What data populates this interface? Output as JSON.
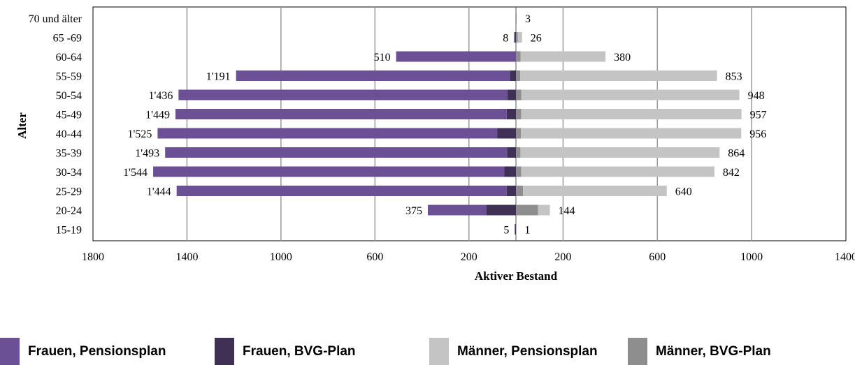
{
  "chart_data": {
    "type": "bar",
    "orientation": "horizontal-population-pyramid",
    "xlabel": "Aktiver Bestand",
    "ylabel": "Alter",
    "xticks": [
      "1800",
      "1400",
      "1000",
      "600",
      "200",
      "200",
      "600",
      "1000",
      "1400"
    ],
    "xlim_left": [
      0,
      1800
    ],
    "xlim_right": [
      0,
      1400
    ],
    "grid": "vertical",
    "legend_position": "bottom",
    "categories": [
      "70 und älter",
      "65 -69",
      "60-64",
      "55-59",
      "50-54",
      "45-49",
      "40-44",
      "35-39",
      "30-34",
      "25-29",
      "20-24",
      "15-19"
    ],
    "series": [
      {
        "name": "Frauen, Pensionsplan",
        "side": "left",
        "color": "#6b5096",
        "values": [
          0,
          3,
          510,
          1165,
          1400,
          1410,
          1445,
          1455,
          1495,
          1405,
          250,
          0
        ]
      },
      {
        "name": "Frauen, BVG-Plan",
        "side": "left",
        "color": "#3f3055",
        "values": [
          0,
          5,
          0,
          26,
          36,
          39,
          80,
          38,
          49,
          39,
          125,
          5
        ]
      },
      {
        "name": "Männer, Pensionsplan",
        "side": "right",
        "color": "#c4c4c4",
        "values": [
          0,
          18,
          360,
          835,
          925,
          935,
          935,
          845,
          820,
          610,
          50,
          0
        ]
      },
      {
        "name": "Männer, BVG-Plan",
        "side": "right",
        "color": "#8e8e8e",
        "values": [
          3,
          8,
          20,
          18,
          23,
          22,
          21,
          19,
          22,
          30,
          94,
          1
        ]
      }
    ],
    "labels_left": [
      "",
      "8",
      "510",
      "1'191",
      "1'436",
      "1'449",
      "1'525",
      "1'493",
      "1'544",
      "1'444",
      "375",
      "5"
    ],
    "labels_right": [
      "3",
      "26",
      "380",
      "853",
      "948",
      "957",
      "956",
      "864",
      "842",
      "640",
      "144",
      "1"
    ]
  },
  "legend": {
    "items": [
      {
        "label": "Frauen, Pensionsplan",
        "color": "#6b5096"
      },
      {
        "label": "Frauen, BVG-Plan",
        "color": "#3f3055"
      },
      {
        "label": "Männer, Pensionsplan",
        "color": "#c4c4c4"
      },
      {
        "label": "Männer,  BVG-Plan",
        "color": "#8e8e8e"
      }
    ]
  }
}
